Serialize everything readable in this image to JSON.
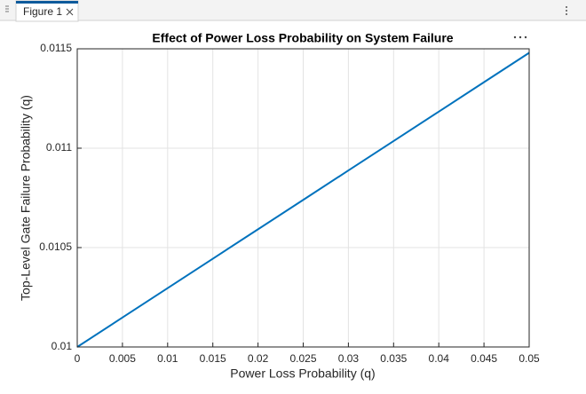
{
  "window": {
    "tab": "Figure 1"
  },
  "chart_data": {
    "type": "line",
    "title": "Effect of Power Loss Probability on System Failure",
    "x_label": "Power Loss Probability (q)",
    "y_label": "Top-Level Gate Failure Probability (q)",
    "x": [
      0,
      0.005,
      0.01,
      0.015,
      0.02,
      0.025,
      0.03,
      0.035,
      0.04,
      0.045,
      0.05
    ],
    "series": [
      {
        "color": "#0072bd",
        "values": [
          0.01,
          0.010148,
          0.010296,
          0.010444,
          0.010592,
          0.01074,
          0.010888,
          0.011036,
          0.011184,
          0.011332,
          0.01148
        ]
      }
    ],
    "xlim": [
      0,
      0.05
    ],
    "xticks": [
      0,
      0.005,
      0.01,
      0.015,
      0.02,
      0.025,
      0.03,
      0.035,
      0.04,
      0.045,
      0.05
    ],
    "ylim": [
      0.01,
      0.0115
    ],
    "yticks": [
      0.01,
      0.0105,
      0.011,
      0.0115
    ],
    "grid": true
  }
}
